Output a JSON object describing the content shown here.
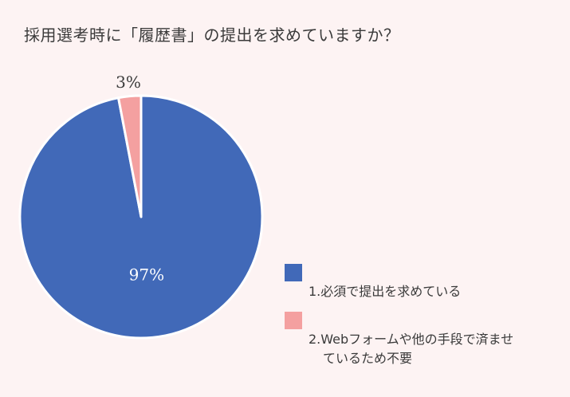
{
  "chart_data": {
    "type": "pie",
    "title": "採用選考時に「履歴書」の提出を求めていますか？",
    "slices": [
      {
        "label": "1.必須で提出を求めている",
        "value": 97,
        "display": "97%",
        "color": "#4169b8"
      },
      {
        "label": "2.Webフォームや他の手段で済ませているため不要",
        "value": 3,
        "display": "3%",
        "color": "#f4a0a0"
      }
    ],
    "legend_placement": "bottom-right",
    "start_angle_deg": 0,
    "direction": "clockwise"
  },
  "legend": {
    "items": [
      {
        "line1": "1.必須で提出を求めている",
        "line2": ""
      },
      {
        "line1": "2.Webフォームや他の手段で済ませ",
        "line2": "ているため不要"
      }
    ]
  }
}
